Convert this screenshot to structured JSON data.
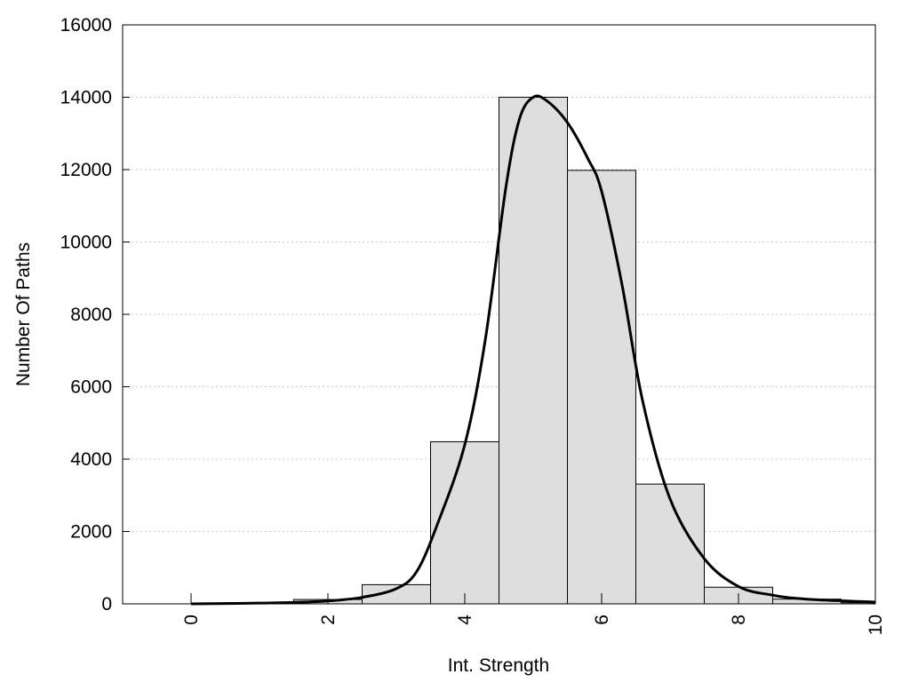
{
  "chart_data": {
    "type": "bar",
    "title": "",
    "xlabel": "Int. Strength",
    "ylabel": "Number Of Paths",
    "xlim": [
      -1,
      10
    ],
    "ylim": [
      0,
      16000
    ],
    "x_ticks": [
      "0",
      "2",
      "4",
      "6",
      "8",
      "10"
    ],
    "y_ticks": [
      "0",
      "2000",
      "4000",
      "6000",
      "8000",
      "10000",
      "12000",
      "14000",
      "16000"
    ],
    "grid": "horizontal-dotted",
    "bar_color": "#dedede",
    "bin_width": 1,
    "bins": [
      {
        "x": 0,
        "value": 0
      },
      {
        "x": 1,
        "value": 30
      },
      {
        "x": 2,
        "value": 120
      },
      {
        "x": 3,
        "value": 530
      },
      {
        "x": 4,
        "value": 4480
      },
      {
        "x": 5,
        "value": 14000
      },
      {
        "x": 6,
        "value": 11980
      },
      {
        "x": 7,
        "value": 3310
      },
      {
        "x": 8,
        "value": 460
      },
      {
        "x": 9,
        "value": 130
      },
      {
        "x": 10,
        "value": 30
      }
    ],
    "curve": {
      "x": [
        0,
        0.5,
        1,
        1.5,
        2,
        2.5,
        3,
        3.3,
        3.6,
        4,
        4.3,
        4.6,
        4.8,
        5.0,
        5.2,
        5.5,
        5.8,
        6.0,
        6.3,
        6.6,
        7.0,
        7.5,
        8.0,
        8.5,
        9.0,
        10.0
      ],
      "y": [
        0,
        10,
        20,
        40,
        80,
        180,
        420,
        900,
        2200,
        4400,
        7300,
        11500,
        13400,
        14000,
        13900,
        13300,
        12300,
        11400,
        8800,
        5600,
        2900,
        1250,
        480,
        240,
        130,
        50
      ]
    }
  }
}
